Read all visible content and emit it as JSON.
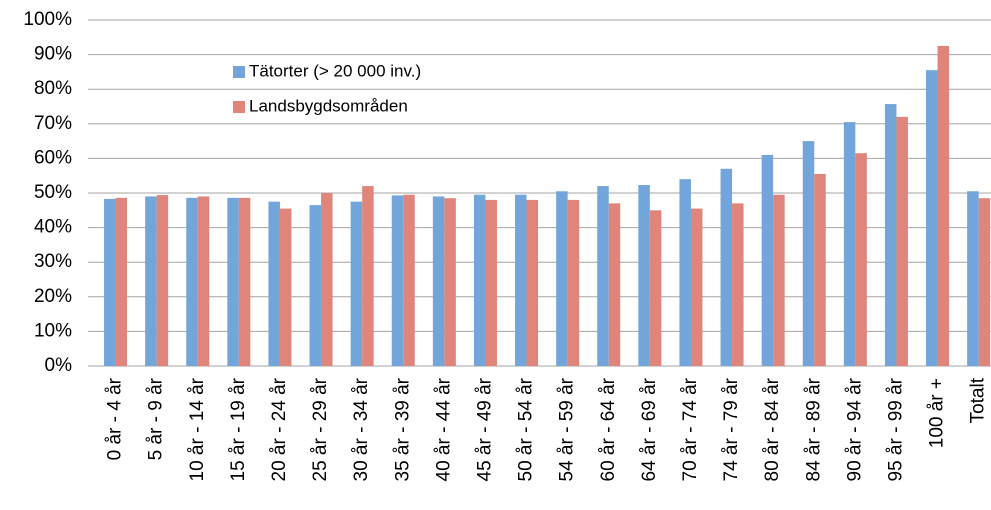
{
  "chart_data": {
    "type": "bar",
    "categories": [
      "0 år - 4 år",
      "5 år - 9 år",
      "10 år - 14 år",
      "15 år - 19 år",
      "20 år - 24 år",
      "25 år - 29 år",
      "30 år - 34 år",
      "35 år - 39 år",
      "40 år - 44 år",
      "45 år - 49 år",
      "50 år - 54 år",
      "54 år - 59 år",
      "60 år - 64 år",
      "64 år - 69 år",
      "70 år - 74 år",
      "74 år - 79 år",
      "80 år - 84 år",
      "84 år - 89 år",
      "90 år - 94 år",
      "95 år - 99 år",
      "100 år +",
      "Totalt"
    ],
    "series": [
      {
        "name": "Tätorter (> 20 000 inv.)",
        "color": "#72a5d9",
        "values": [
          48.3,
          49,
          48.6,
          48.6,
          47.5,
          46.5,
          47.5,
          49.3,
          49,
          49.5,
          49.5,
          50.5,
          52,
          52.3,
          54,
          57,
          61,
          65,
          70.5,
          75.7,
          85.5,
          50.5
        ]
      },
      {
        "name": "Landsbygdsområden",
        "color": "#e0857b",
        "values": [
          48.6,
          49.4,
          49,
          48.6,
          45.5,
          50,
          52,
          49.5,
          48.5,
          48,
          48,
          48,
          47,
          45,
          45.5,
          47,
          49.5,
          55.5,
          61.5,
          72,
          92.5,
          48.5
        ]
      }
    ],
    "ylim": [
      0,
      100
    ],
    "yticks": [
      {
        "value": 0,
        "label": "0%"
      },
      {
        "value": 10,
        "label": "10%"
      },
      {
        "value": 20,
        "label": "20%"
      },
      {
        "value": 30,
        "label": "30%"
      },
      {
        "value": 40,
        "label": "40%"
      },
      {
        "value": 50,
        "label": "50%"
      },
      {
        "value": 60,
        "label": "60%"
      },
      {
        "value": 70,
        "label": "70%"
      },
      {
        "value": 80,
        "label": "80%"
      },
      {
        "value": 90,
        "label": "90%"
      },
      {
        "value": 100,
        "label": "100%"
      }
    ],
    "grid": true,
    "legend": "upper left"
  }
}
